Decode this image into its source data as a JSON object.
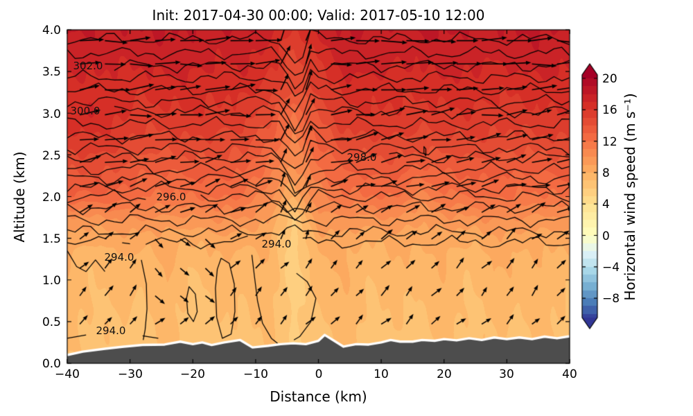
{
  "chart_data": {
    "type": "heatmap",
    "title": "Init: 2017-04-30 00:00; Valid: 2017-05-10 12:00",
    "xlabel": "Distance (km)",
    "ylabel": "Altitude (km)",
    "colorbar_label": "Horizontal wind speed (m s⁻¹)",
    "xlim": [
      -40,
      40
    ],
    "ylim": [
      0,
      4
    ],
    "x_ticks": [
      -40,
      -30,
      -20,
      -10,
      0,
      10,
      20,
      30,
      40
    ],
    "y_ticks": [
      4.0,
      3.5,
      3.0,
      2.5,
      2.0,
      1.5,
      1.0,
      0.5,
      0.0
    ],
    "x_tick_labels": [
      "−40",
      "−30",
      "−20",
      "−10",
      "0",
      "10",
      "20",
      "30",
      "40"
    ],
    "y_tick_labels": [
      "4.0",
      "3.5",
      "3.0",
      "2.5",
      "2.0",
      "1.5",
      "1.0",
      "0.5",
      "0.0"
    ],
    "colorbar_ticks": [
      20,
      16,
      12,
      8,
      4,
      0,
      -4,
      -8
    ],
    "colorbar_tick_labels": [
      "20",
      "16",
      "12",
      "8",
      "4",
      "0",
      "−4",
      "−8"
    ],
    "colormap": {
      "name": "RdYlBu_r",
      "stops": [
        "#313695",
        "#4575b4",
        "#74add1",
        "#abd9e9",
        "#e0f3f8",
        "#ffffbf",
        "#fee090",
        "#fdae61",
        "#f46d43",
        "#d73027",
        "#a50026"
      ],
      "vmin": -11,
      "vcenter": 0,
      "vmax": 20.5,
      "band_step": 1,
      "extend": "both"
    },
    "wind_speed_grid": {
      "x": [
        -40,
        -36,
        -32,
        -28,
        -24,
        -20,
        -16,
        -12,
        -8,
        -4,
        0,
        4,
        8,
        12,
        16,
        20,
        24,
        28,
        32,
        36,
        40
      ],
      "z": [
        0,
        0.25,
        0.5,
        0.75,
        1.0,
        1.25,
        1.5,
        1.75,
        2.0,
        2.25,
        2.5,
        2.75,
        3.0,
        3.25,
        3.5,
        3.75,
        4.0
      ],
      "values": [
        [
          6.8,
          6.2,
          6.7,
          6.1,
          6.9,
          6.0,
          6.7,
          6.1,
          6.8,
          5.6,
          6.3,
          6.9,
          6.1,
          6.8,
          6.0,
          6.8,
          6.2,
          6.9,
          6.3,
          6.8,
          6.3
        ],
        [
          7.1,
          6.5,
          7.0,
          6.4,
          7.2,
          6.3,
          7.0,
          6.4,
          7.1,
          5.8,
          6.6,
          7.2,
          6.4,
          7.1,
          6.3,
          7.1,
          6.5,
          7.2,
          6.6,
          7.1,
          6.6
        ],
        [
          7.3,
          6.7,
          7.2,
          6.6,
          7.4,
          6.5,
          7.2,
          6.6,
          7.3,
          6.0,
          6.8,
          7.4,
          6.6,
          7.3,
          6.5,
          7.3,
          6.7,
          7.4,
          6.8,
          7.3,
          6.8
        ],
        [
          7.5,
          6.9,
          7.4,
          6.8,
          7.6,
          6.7,
          7.4,
          6.8,
          7.5,
          5.8,
          7.0,
          7.6,
          6.8,
          7.5,
          6.7,
          7.5,
          6.9,
          7.6,
          7.0,
          7.5,
          7.0
        ],
        [
          7.8,
          7.2,
          7.7,
          7.1,
          7.9,
          7.0,
          7.7,
          7.1,
          7.8,
          5.6,
          7.3,
          7.9,
          7.1,
          7.8,
          7.0,
          7.8,
          7.2,
          7.9,
          7.3,
          7.8,
          7.3
        ],
        [
          8.1,
          7.5,
          8.0,
          7.4,
          8.2,
          7.3,
          8.0,
          7.4,
          8.1,
          5.5,
          7.6,
          8.2,
          7.4,
          8.1,
          7.3,
          8.1,
          7.5,
          8.2,
          7.6,
          8.1,
          7.6
        ],
        [
          8.7,
          8.3,
          8.6,
          8.3,
          8.7,
          8.2,
          8.6,
          8.3,
          8.5,
          5.5,
          8.4,
          8.7,
          8.3,
          8.6,
          8.2,
          8.7,
          8.3,
          8.7,
          8.4,
          8.7,
          8.4
        ],
        [
          10,
          10,
          10,
          10,
          10,
          10,
          10,
          10,
          9.5,
          6.0,
          9.5,
          10,
          10,
          10,
          9.0,
          10,
          10,
          10,
          10,
          10,
          10
        ],
        [
          13,
          13,
          12.5,
          12,
          12,
          12,
          12,
          12,
          10.5,
          8.0,
          10.5,
          12,
          12,
          12,
          10.5,
          12,
          12,
          12,
          12,
          12,
          12
        ],
        [
          14,
          14,
          13.5,
          13,
          13,
          13,
          13,
          13,
          11.5,
          9.0,
          11.5,
          13,
          13,
          13,
          12.2,
          13,
          13,
          13,
          13,
          13,
          13
        ],
        [
          15,
          15,
          14.5,
          14,
          14,
          14,
          14,
          14,
          12.5,
          10,
          12.5,
          14,
          14,
          14,
          14,
          14,
          14,
          14,
          14,
          14,
          14
        ],
        [
          16,
          16,
          15.5,
          15,
          15,
          15,
          15,
          15,
          13.5,
          11,
          13.5,
          15,
          15,
          15,
          15,
          15,
          15,
          15,
          15,
          15,
          15
        ],
        [
          16.8,
          16.8,
          16.3,
          15.8,
          15.8,
          15.8,
          15.8,
          15.8,
          14.3,
          11.8,
          14.3,
          15.8,
          15.8,
          15.8,
          15.8,
          15.8,
          15.8,
          15.8,
          15.8,
          15.8,
          15.8
        ],
        [
          16.3,
          16.3,
          16.3,
          16.3,
          16.3,
          16.3,
          16.3,
          16.3,
          15.3,
          13.8,
          15.3,
          16.3,
          16.3,
          16.3,
          16.3,
          16.3,
          16.3,
          16.3,
          16.3,
          16.3,
          16.3
        ],
        [
          17,
          17,
          17,
          17,
          17,
          17,
          17,
          17,
          16,
          14.5,
          16,
          17,
          17,
          17,
          17,
          17,
          17,
          17,
          17,
          17,
          17
        ],
        [
          17.5,
          17.5,
          17.5,
          17.5,
          17.5,
          17.5,
          17.5,
          17.5,
          16.5,
          15,
          16.5,
          17.5,
          17.5,
          17.5,
          17.5,
          17.5,
          17.5,
          17.5,
          17.5,
          17.5,
          17.5
        ],
        [
          18,
          18,
          18,
          18,
          18,
          18,
          18,
          18,
          17.5,
          16,
          17.5,
          18,
          18,
          18,
          18,
          18,
          18,
          18,
          18,
          18,
          18
        ]
      ]
    },
    "terrain_km": [
      [
        -40,
        0.1
      ],
      [
        -37.5,
        0.14
      ],
      [
        -34,
        0.175
      ],
      [
        -31,
        0.2
      ],
      [
        -28,
        0.22
      ],
      [
        -24.5,
        0.225
      ],
      [
        -22,
        0.26
      ],
      [
        -20,
        0.23
      ],
      [
        -18.5,
        0.25
      ],
      [
        -17,
        0.22
      ],
      [
        -15,
        0.25
      ],
      [
        -12.5,
        0.28
      ],
      [
        -10.5,
        0.19
      ],
      [
        -8,
        0.21
      ],
      [
        -6,
        0.23
      ],
      [
        -4,
        0.24
      ],
      [
        -2,
        0.23
      ],
      [
        0,
        0.27
      ],
      [
        1,
        0.34
      ],
      [
        2.5,
        0.27
      ],
      [
        4,
        0.2
      ],
      [
        6,
        0.23
      ],
      [
        8,
        0.225
      ],
      [
        10,
        0.25
      ],
      [
        11.5,
        0.28
      ],
      [
        13,
        0.26
      ],
      [
        15,
        0.26
      ],
      [
        16.5,
        0.28
      ],
      [
        18.5,
        0.27
      ],
      [
        20,
        0.29
      ],
      [
        22,
        0.275
      ],
      [
        24,
        0.3
      ],
      [
        26,
        0.28
      ],
      [
        28,
        0.31
      ],
      [
        30,
        0.29
      ],
      [
        32,
        0.31
      ],
      [
        34,
        0.29
      ],
      [
        36,
        0.32
      ],
      [
        38,
        0.3
      ],
      [
        40,
        0.325
      ]
    ],
    "terrain_color": "#4d4d4d",
    "terrain_outline_color": "#ffffff",
    "theta_contours": {
      "interval": 0.5,
      "line_color": "#000000",
      "lines": [
        {
          "level": 294.0,
          "alt": 1.45
        },
        {
          "level": 294.5,
          "alt": 1.58
        },
        {
          "level": 295.0,
          "alt": 1.72
        },
        {
          "level": 295.5,
          "alt": 1.87
        },
        {
          "level": 296.0,
          "alt": 2.0
        },
        {
          "level": 296.5,
          "alt": 2.1
        },
        {
          "level": 297.0,
          "alt": 2.22
        },
        {
          "level": 297.5,
          "alt": 2.33
        },
        {
          "level": 298.0,
          "alt": 2.47
        },
        {
          "level": 298.5,
          "alt": 2.58
        },
        {
          "level": 299.0,
          "alt": 2.72
        },
        {
          "level": 299.5,
          "alt": 2.87
        },
        {
          "level": 300.0,
          "alt": 3.02
        },
        {
          "level": 300.5,
          "alt": 3.14
        },
        {
          "level": 301.0,
          "alt": 3.28
        },
        {
          "level": 301.5,
          "alt": 3.43
        },
        {
          "level": 302.0,
          "alt": 3.57
        },
        {
          "level": 302.5,
          "alt": 3.72
        },
        {
          "level": 303.0,
          "alt": 3.89
        }
      ],
      "extra_paths": [
        {
          "level": 294.0,
          "closed": false,
          "pts": [
            [
              -40,
              1.35
            ],
            [
              -38.5,
              1.16
            ],
            [
              -37,
              1.1
            ],
            [
              -35.5,
              1.24
            ],
            [
              -34,
              1.1
            ],
            [
              -32.8,
              1.28
            ],
            [
              -30.5,
              1.33
            ],
            [
              -28.2,
              1.24
            ],
            [
              -27.4,
              0.95
            ],
            [
              -27.3,
              0.65
            ],
            [
              -27.6,
              0.4
            ],
            [
              -27.9,
              0.28
            ]
          ]
        },
        {
          "level": 294.0,
          "closed": false,
          "pts": [
            [
              -40,
              0.3
            ],
            [
              -37,
              0.34
            ],
            [
              -34,
              0.36
            ],
            [
              -31,
              0.37
            ],
            [
              -28,
              0.33
            ],
            [
              -25.5,
              0.3
            ]
          ]
        },
        {
          "level": 294.0,
          "closed": true,
          "pts": [
            [
              -20.6,
              0.92
            ],
            [
              -19.6,
              0.83
            ],
            [
              -19.3,
              0.62
            ],
            [
              -19.9,
              0.5
            ],
            [
              -20.8,
              0.6
            ],
            [
              -21.0,
              0.78
            ]
          ]
        },
        {
          "level": 294.0,
          "closed": true,
          "pts": [
            [
              -15.5,
              1.26
            ],
            [
              -14.2,
              1.2
            ],
            [
              -13.4,
              0.95
            ],
            [
              -13.3,
              0.62
            ],
            [
              -13.9,
              0.35
            ],
            [
              -15.3,
              0.3
            ],
            [
              -16.2,
              0.55
            ],
            [
              -16.4,
              0.9
            ],
            [
              -16.1,
              1.13
            ]
          ]
        },
        {
          "level": 294.0,
          "closed": false,
          "pts": [
            [
              -10.6,
              1.3
            ],
            [
              -10.2,
              1.05
            ],
            [
              -9.7,
              0.75
            ],
            [
              -8.9,
              0.48
            ],
            [
              -7.5,
              0.3
            ],
            [
              -6.5,
              0.24
            ]
          ]
        },
        {
          "level": 294.0,
          "closed": false,
          "pts": [
            [
              -3.5,
              1.08
            ],
            [
              -1.8,
              0.98
            ],
            [
              -0.4,
              0.78
            ],
            [
              -1.2,
              0.5
            ],
            [
              -3.0,
              0.32
            ],
            [
              -3.9,
              0.28
            ]
          ]
        },
        {
          "level": 298.5,
          "closed": true,
          "pts": [
            [
              16.8,
              2.6
            ],
            [
              17.1,
              2.57
            ],
            [
              17.1,
              2.49
            ],
            [
              16.8,
              2.52
            ]
          ]
        }
      ],
      "labels": [
        {
          "text": "302.0",
          "level": 302.0,
          "x": -36.7,
          "z": 3.57
        },
        {
          "text": "300.0",
          "level": 300.0,
          "x": -37.1,
          "z": 3.03
        },
        {
          "text": "298.0",
          "level": 298.0,
          "x": 6.9,
          "z": 2.47
        },
        {
          "text": "296.0",
          "level": 296.0,
          "x": -23.4,
          "z": 2.0
        },
        {
          "text": "294.0",
          "level": 294.0,
          "x": -6.7,
          "z": 1.43
        },
        {
          "text": "294.0",
          "level": 294.0,
          "x": -31.7,
          "z": 1.27
        },
        {
          "text": "294.0",
          "level": 294.0,
          "x": -33.0,
          "z": 0.39
        }
      ]
    },
    "quiver": {
      "color": "#000000",
      "x_start": -38,
      "x_step": 4,
      "cols": 20,
      "rows": [
        {
          "z": 0.16,
          "angle": 35,
          "jitter": 18,
          "len": 15
        },
        {
          "z": 0.47,
          "angle": 45,
          "jitter": 15,
          "len": 16
        },
        {
          "z": 0.81,
          "angle": 48,
          "jitter": 14,
          "len": 17
        },
        {
          "z": 1.14,
          "angle": 46,
          "jitter": 14,
          "len": 17
        },
        {
          "z": 1.49,
          "angle": 40,
          "jitter": 14,
          "len": 19
        },
        {
          "z": 1.81,
          "angle": 28,
          "jitter": 16,
          "len": 22
        },
        {
          "z": 2.12,
          "angle": 17,
          "jitter": 14,
          "len": 26
        },
        {
          "z": 2.41,
          "angle": 11,
          "jitter": 13,
          "len": 29
        },
        {
          "z": 2.68,
          "angle": 8,
          "jitter": 13,
          "len": 31
        },
        {
          "z": 2.98,
          "angle": 6,
          "jitter": 11,
          "len": 32
        },
        {
          "z": 3.28,
          "angle": 4,
          "jitter": 11,
          "len": 33
        },
        {
          "z": 3.59,
          "angle": 2,
          "jitter": 9,
          "len": 34
        },
        {
          "z": 3.87,
          "angle": 1,
          "jitter": 8,
          "len": 34
        }
      ],
      "updraft_zone": {
        "x_range": [
          -7.5,
          -0.5
        ],
        "z_min": 1.3,
        "angle": 68,
        "len_scale": 0.8
      },
      "downdraft_zone": {
        "x_range": [
          -26,
          -18
        ],
        "z_range": [
          0.6,
          1.8
        ],
        "angle": -42
      }
    },
    "frame_color": "#000000",
    "background_color": "#ffffff"
  }
}
